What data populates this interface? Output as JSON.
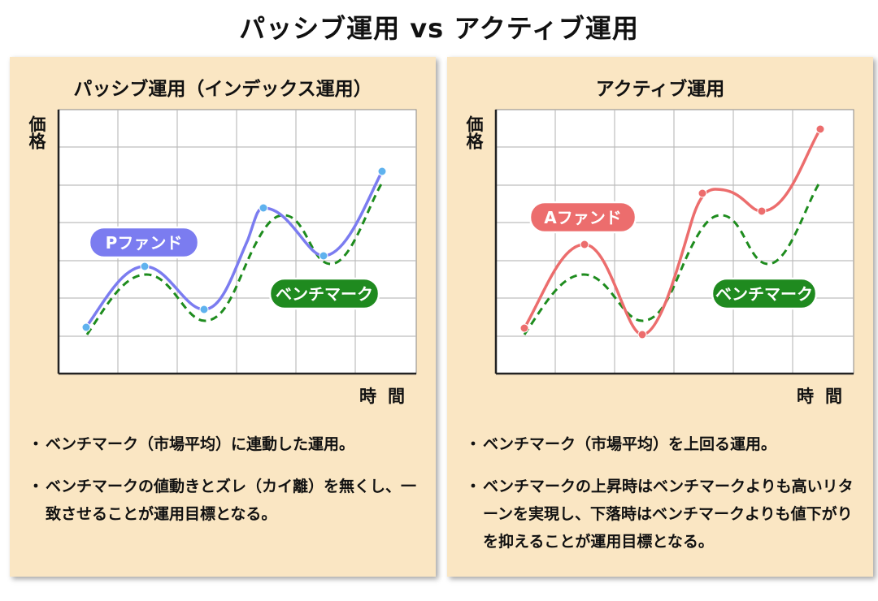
{
  "title": "パッシブ運用 vs アクティブ運用",
  "panels": [
    {
      "title": "パッシブ運用（インデックス運用）",
      "ylabel": "価格",
      "xlabel": "時間",
      "fund_label": "Pファンド",
      "benchmark_label": "ベンチマーク",
      "fund_color": "#7b7cf0",
      "bullets": [
        "ベンチマーク（市場平均）に連動した運用。",
        "ベンチマークの値動きとズレ（カイ離）を無くし、一致させることが運用目標となる。"
      ]
    },
    {
      "title": "アクティブ運用",
      "ylabel": "価格",
      "xlabel": "時間",
      "fund_label": "Aファンド",
      "benchmark_label": "ベンチマーク",
      "fund_color": "#ec6d6d",
      "bullets": [
        "ベンチマーク（市場平均）を上回る運用。",
        "ベンチマークの上昇時はベンチマークよりも高いリターンを実現し、下落時はベンチマークよりも値下がりを抑えることが運用目標となる。"
      ]
    }
  ],
  "colors": {
    "panel_bg": "#fae6c3",
    "benchmark": "#1e8c1e",
    "benchmark_badge": "#1f8a1f",
    "grid": "#bdbdbd"
  }
}
